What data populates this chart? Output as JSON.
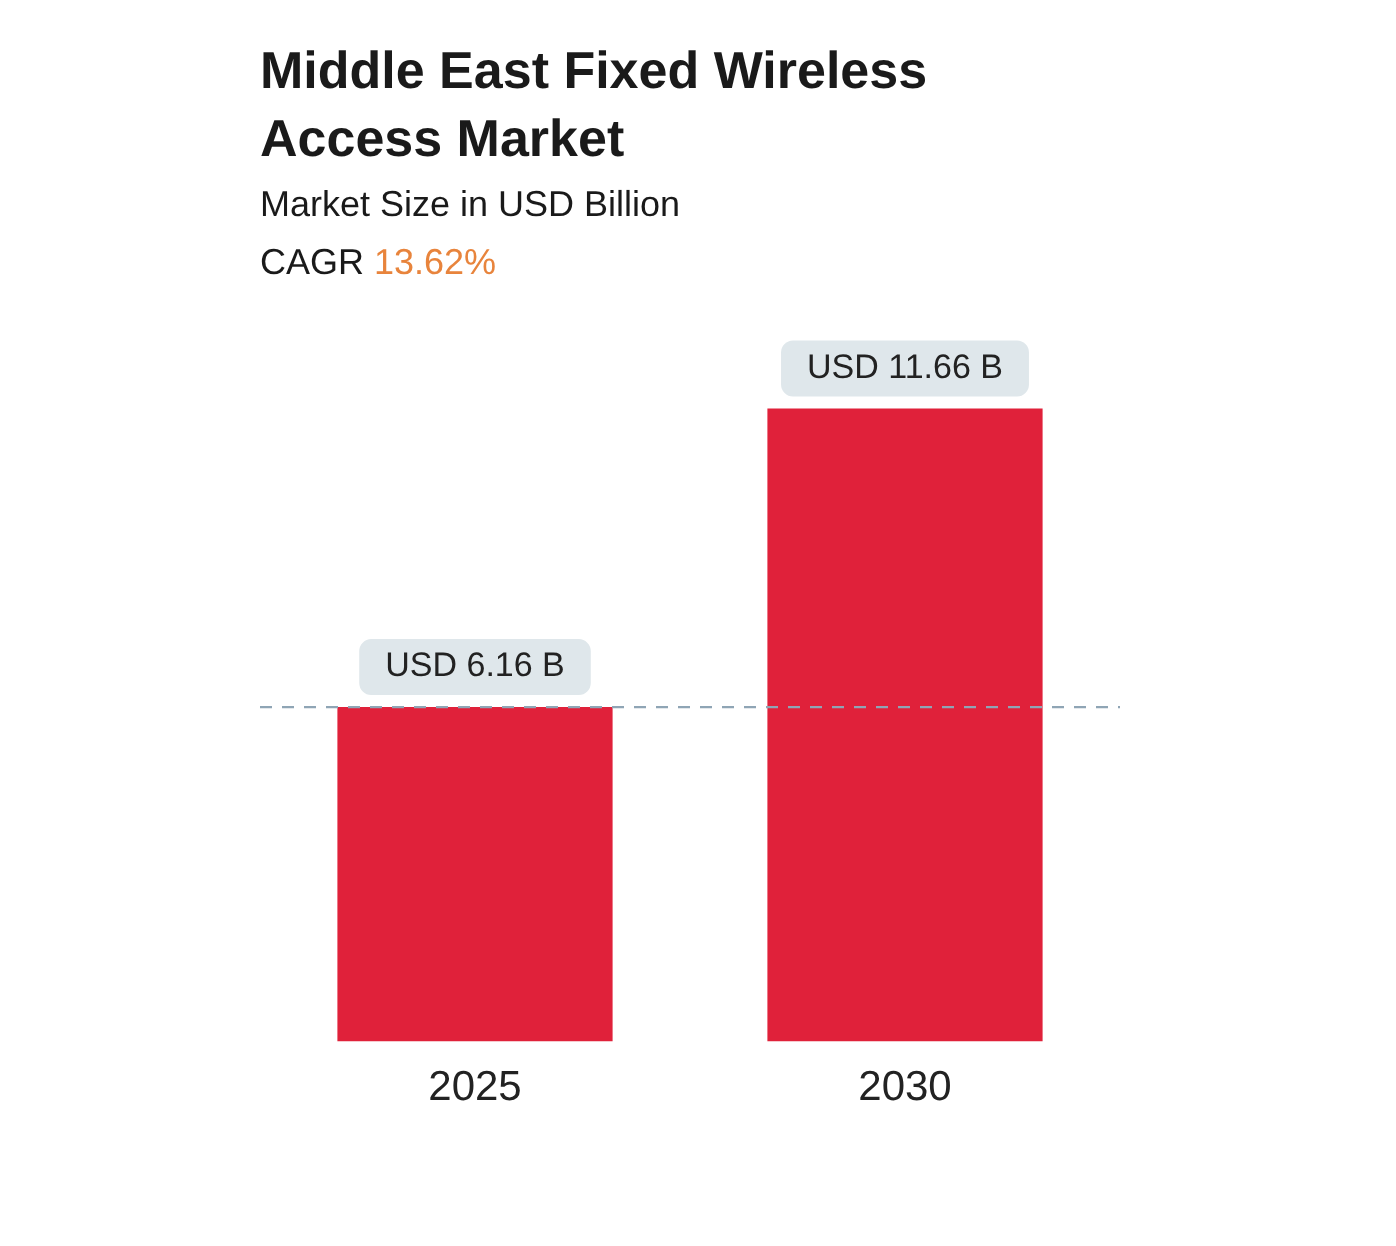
{
  "chart_data": {
    "type": "bar",
    "title": "Middle East Fixed Wireless Access Market",
    "subtitle": "Market Size in USD Billion",
    "annotations": [
      "CAGR 13.62%"
    ],
    "categories": [
      "2025",
      "2030"
    ],
    "values": [
      6.16,
      11.66
    ],
    "value_labels": [
      "USD 6.16 B",
      "USD 11.66 B"
    ],
    "color": "#e0213a",
    "ref_lines": [
      {
        "axis": "y",
        "value": 6.16,
        "color": "#8fa5b5",
        "line_style": "dashed"
      }
    ],
    "grid": false,
    "legend": false
  }
}
